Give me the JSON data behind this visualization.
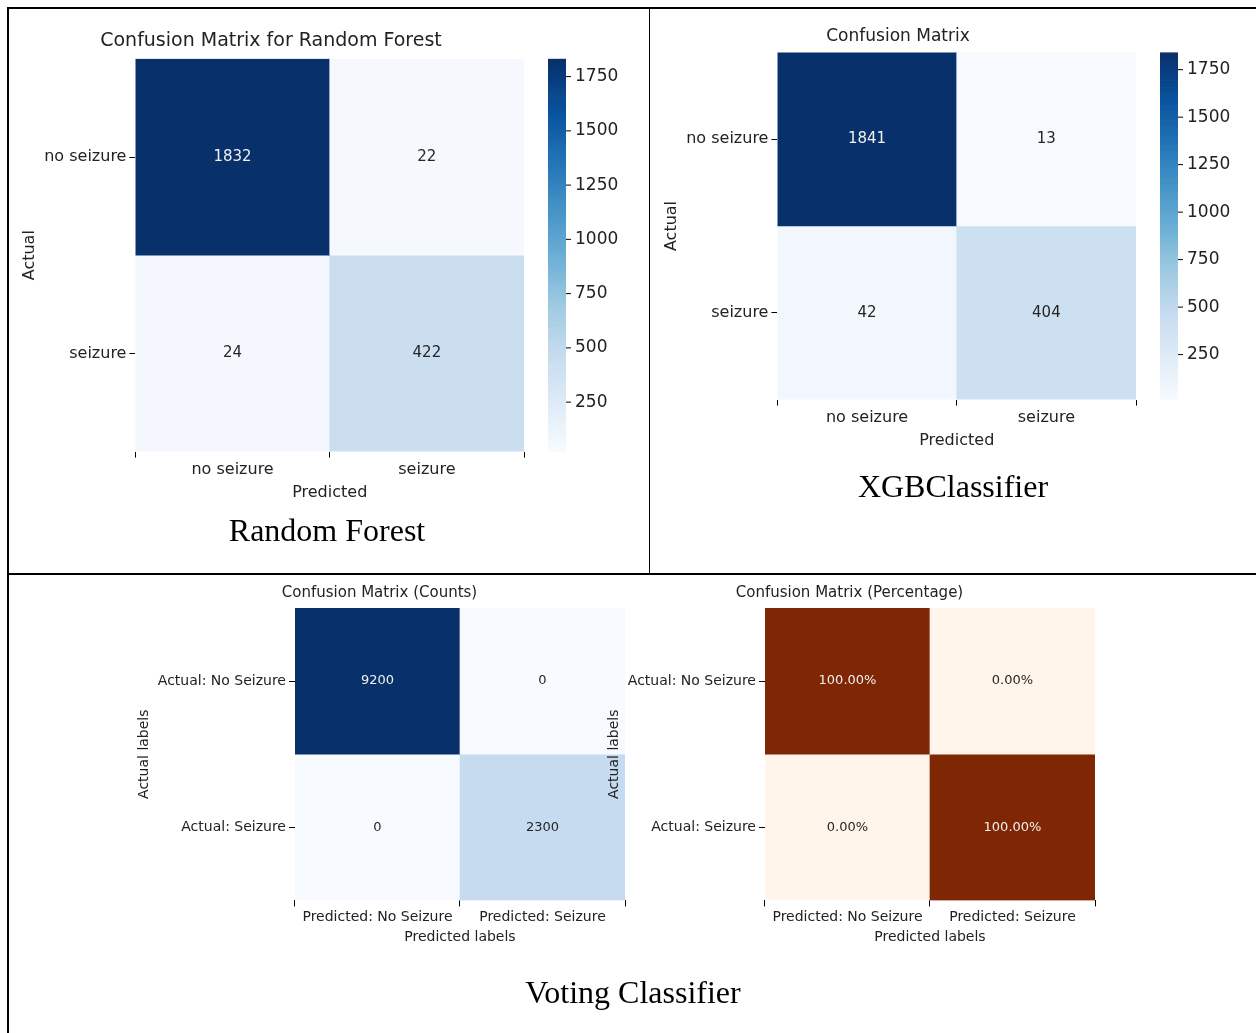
{
  "chart_data": [
    {
      "type": "heatmap",
      "title": "Confusion Matrix for Random Forest",
      "xlabel": "Predicted",
      "ylabel": "Actual",
      "categories": [
        "no seizure",
        "seizure"
      ],
      "y_categories": [
        "no seizure",
        "seizure"
      ],
      "cells": [
        [
          1832,
          22
        ],
        [
          24,
          422
        ]
      ],
      "colors": [
        [
          "#08306b",
          "#f5f9fe"
        ],
        [
          "#f4f8fe",
          "#cadef0"
        ]
      ],
      "clim": [
        22,
        1832
      ],
      "cticks": [
        250,
        500,
        750,
        1000,
        1250,
        1500,
        1750
      ],
      "data_labels": true,
      "annotations": [
        "Random Forest"
      ]
    },
    {
      "type": "heatmap",
      "title": "Confusion Matrix",
      "xlabel": "Predicted",
      "ylabel": "Actual",
      "categories": [
        "no seizure",
        "seizure"
      ],
      "y_categories": [
        "no seizure",
        "seizure"
      ],
      "cells": [
        [
          1841,
          13
        ],
        [
          42,
          404
        ]
      ],
      "colors": [
        [
          "#08306b",
          "#f6faff"
        ],
        [
          "#f1f7fd",
          "#cde0f1"
        ]
      ],
      "clim": [
        13,
        1841
      ],
      "cticks": [
        250,
        500,
        750,
        1000,
        1250,
        1500,
        1750
      ],
      "data_labels": true,
      "annotations": [
        "XGBClassifier"
      ]
    },
    {
      "type": "heatmap",
      "title": "Confusion Matrix (Counts)",
      "xlabel": "Predicted labels",
      "ylabel": "Actual labels",
      "categories": [
        "Predicted: No Seizure",
        "Predicted: Seizure"
      ],
      "y_categories": [
        "Actual: No Seizure",
        "Actual: Seizure"
      ],
      "cells": [
        [
          9200,
          0
        ],
        [
          0,
          2300
        ]
      ],
      "colors": [
        [
          "#08306b",
          "#f7fbff"
        ],
        [
          "#f7fbff",
          "#c6dbef"
        ]
      ],
      "data_labels": true,
      "annotations": [
        "Voting Classifier"
      ]
    },
    {
      "type": "heatmap",
      "title": "Confusion Matrix (Percentage)",
      "xlabel": "Predicted labels",
      "ylabel": "Actual labels",
      "categories": [
        "Predicted: No Seizure",
        "Predicted: Seizure"
      ],
      "y_categories": [
        "Actual: No Seizure",
        "Actual: Seizure"
      ],
      "cells": [
        [
          100,
          0
        ],
        [
          0,
          100
        ]
      ],
      "cell_labels": [
        [
          "100.00%",
          "0.00%"
        ],
        [
          "0.00%",
          "100.00%"
        ]
      ],
      "colors": [
        [
          "#7f2704",
          "#fff5eb"
        ],
        [
          "#fff5eb",
          "#7f2704"
        ]
      ]
    }
  ]
}
